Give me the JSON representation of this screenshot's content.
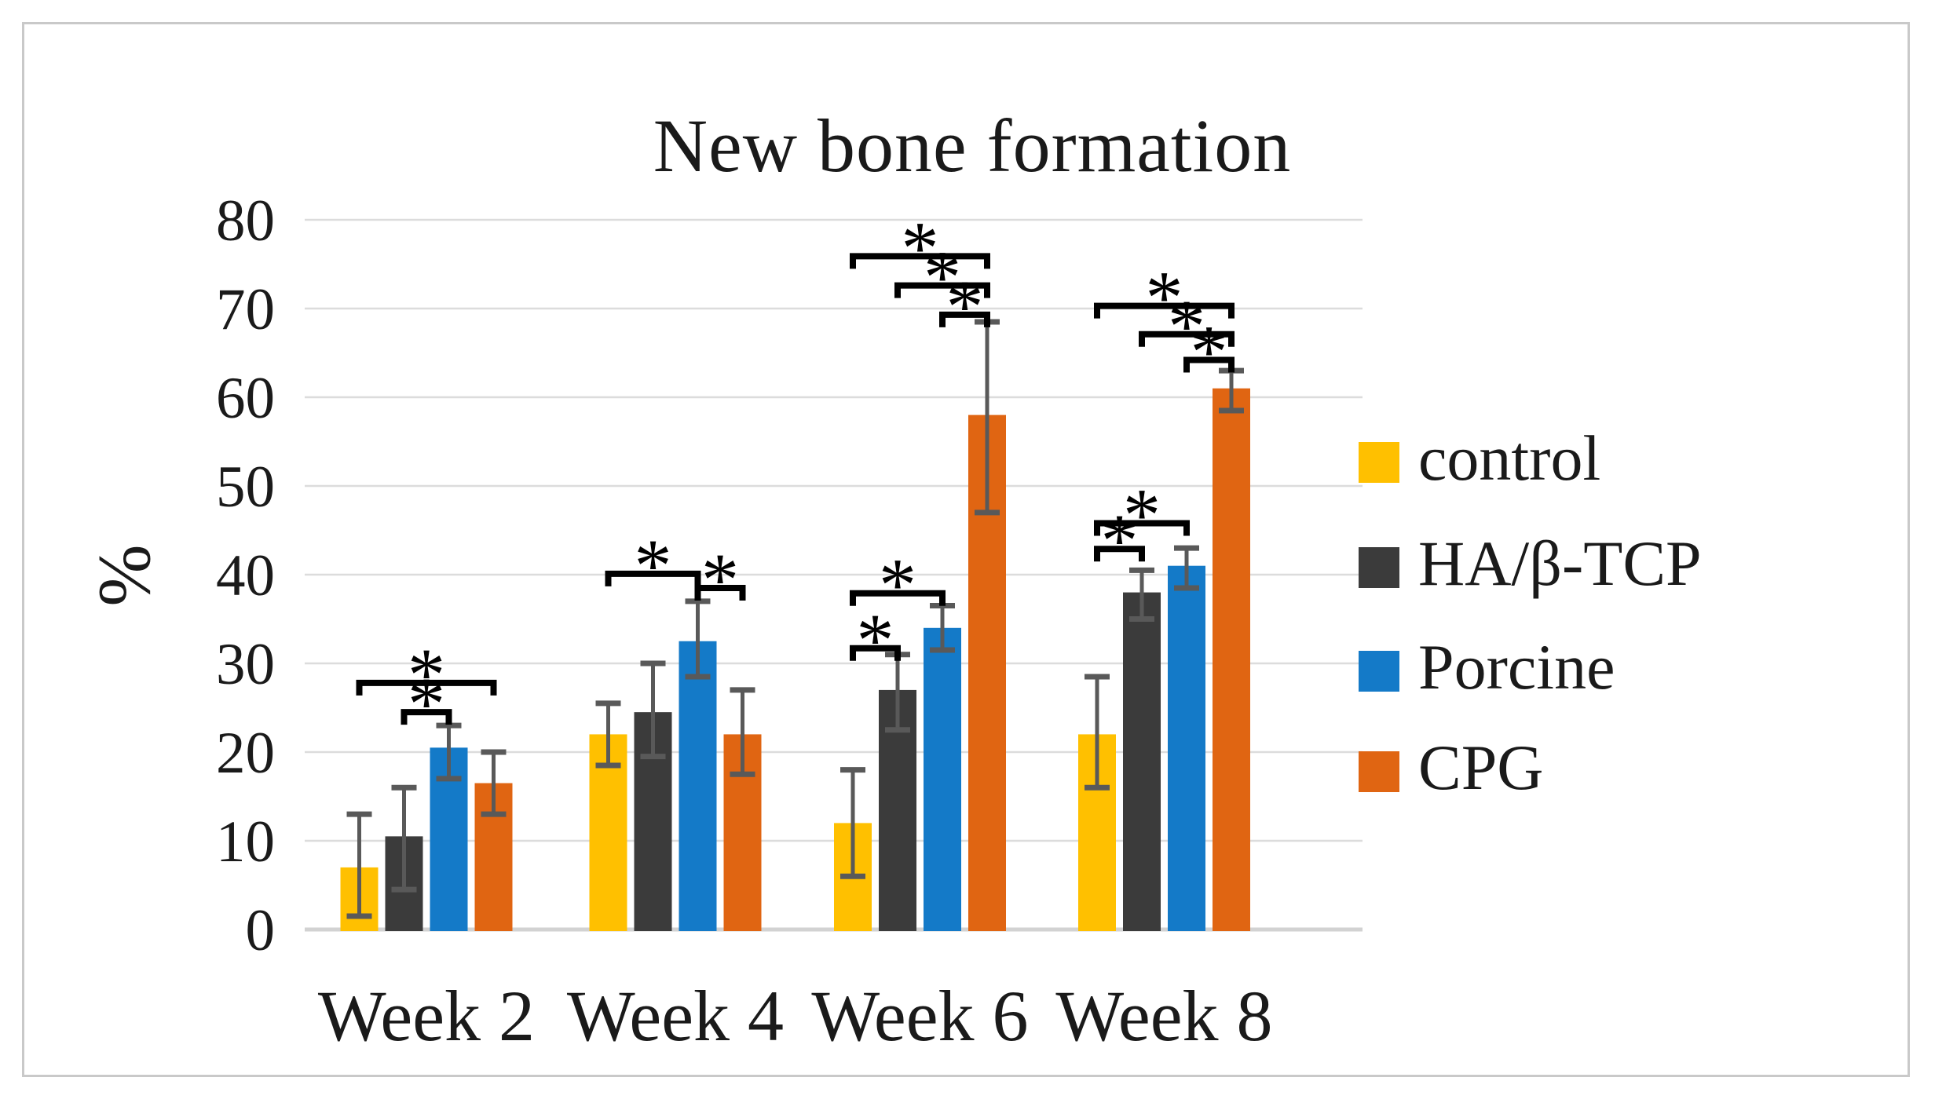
{
  "figure": {
    "border_color": "#c9c9c9",
    "background": "#ffffff"
  },
  "chart_data": {
    "type": "bar",
    "title": "New bone formation",
    "xlabel": "",
    "ylabel": "%",
    "ylim": [
      0,
      80
    ],
    "yticks": [
      0,
      10,
      20,
      30,
      40,
      50,
      60,
      70,
      80
    ],
    "grid": true,
    "gridline_color": "#dcdcdc",
    "baseline_color": "#d2d2d2",
    "error_bar_color": "#595959",
    "legend_position": "right",
    "categories": [
      "Week 2",
      "Week 4",
      "Week 6",
      "Week 8"
    ],
    "series": [
      {
        "name": "control",
        "color": "#FFC000",
        "values": [
          7,
          22,
          12,
          22
        ],
        "err_low": [
          1.5,
          18.5,
          6,
          16
        ],
        "err_high": [
          13,
          25.5,
          18,
          28.5
        ]
      },
      {
        "name": "HA/β-TCP",
        "color": "#3B3B3B",
        "values": [
          10.5,
          24.5,
          27,
          38
        ],
        "err_low": [
          4.5,
          19.5,
          22.5,
          35
        ],
        "err_high": [
          16,
          30,
          31,
          40.5
        ]
      },
      {
        "name": "Porcine",
        "color": "#147AC8",
        "values": [
          20.5,
          32.5,
          34,
          41
        ],
        "err_low": [
          17,
          28.5,
          31.5,
          38.5
        ],
        "err_high": [
          23,
          37,
          36.5,
          43
        ]
      },
      {
        "name": "CPG",
        "color": "#E06512",
        "values": [
          16.5,
          22,
          58,
          61
        ],
        "err_low": [
          13,
          17.5,
          47,
          58.5
        ],
        "err_high": [
          20,
          27,
          68.5,
          63
        ]
      }
    ],
    "significance_brackets": [
      {
        "category": 0,
        "from": 0,
        "to": 3,
        "y": 27.8,
        "label": "*"
      },
      {
        "category": 0,
        "from": 1,
        "to": 2,
        "y": 24.5,
        "label": "*"
      },
      {
        "category": 1,
        "from": 0,
        "to": 2,
        "y": 40.1,
        "label": "*"
      },
      {
        "category": 1,
        "from": 2,
        "to": 3,
        "y": 38.5,
        "label": "*"
      },
      {
        "category": 2,
        "from": 0,
        "to": 3,
        "y": 75.9,
        "label": "*"
      },
      {
        "category": 2,
        "from": 1,
        "to": 3,
        "y": 72.6,
        "label": "*"
      },
      {
        "category": 2,
        "from": 2,
        "to": 3,
        "y": 69.3,
        "label": "*"
      },
      {
        "category": 2,
        "from": 0,
        "to": 2,
        "y": 37.9,
        "label": "*"
      },
      {
        "category": 2,
        "from": 0,
        "to": 1,
        "y": 31.7,
        "label": "*"
      },
      {
        "category": 3,
        "from": 0,
        "to": 3,
        "y": 70.3,
        "label": "*"
      },
      {
        "category": 3,
        "from": 1,
        "to": 3,
        "y": 67.1,
        "label": "*"
      },
      {
        "category": 3,
        "from": 2,
        "to": 3,
        "y": 64.2,
        "label": "*"
      },
      {
        "category": 3,
        "from": 0,
        "to": 2,
        "y": 45.8,
        "label": "*"
      },
      {
        "category": 3,
        "from": 0,
        "to": 1,
        "y": 42.9,
        "label": "*"
      }
    ]
  }
}
